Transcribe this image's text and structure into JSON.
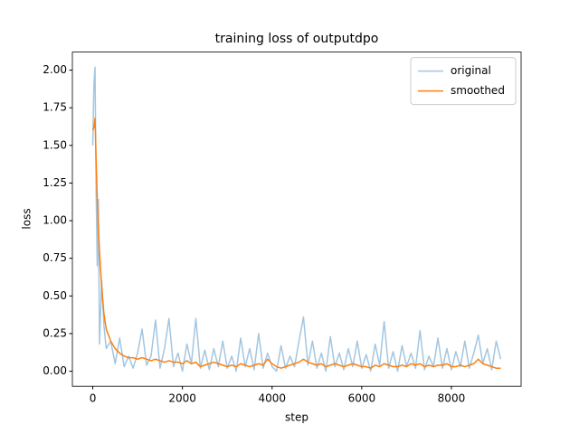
{
  "chart_data": {
    "type": "line",
    "title": "training loss of outputdpo",
    "xlabel": "step",
    "ylabel": "loss",
    "x": [
      0,
      25,
      50,
      75,
      100,
      125,
      150,
      200,
      250,
      300,
      400,
      500,
      600,
      700,
      800,
      900,
      1000,
      1100,
      1200,
      1300,
      1400,
      1500,
      1600,
      1700,
      1800,
      1900,
      2000,
      2100,
      2200,
      2300,
      2400,
      2500,
      2600,
      2700,
      2800,
      2900,
      3000,
      3100,
      3200,
      3300,
      3400,
      3500,
      3600,
      3700,
      3800,
      3900,
      4000,
      4100,
      4200,
      4300,
      4400,
      4500,
      4600,
      4700,
      4800,
      4900,
      5000,
      5100,
      5200,
      5300,
      5400,
      5500,
      5600,
      5700,
      5800,
      5900,
      6000,
      6100,
      6200,
      6300,
      6400,
      6500,
      6600,
      6700,
      6800,
      6900,
      7000,
      7100,
      7200,
      7300,
      7400,
      7500,
      7600,
      7700,
      7800,
      7900,
      8000,
      8100,
      8200,
      8300,
      8400,
      8500,
      8600,
      8700,
      8800,
      8900,
      9000,
      9100
    ],
    "series": [
      {
        "name": "original",
        "color": "#a3c6e1",
        "values": [
          1.5,
          1.9,
          2.02,
          1.2,
          0.7,
          1.14,
          0.18,
          0.6,
          0.3,
          0.15,
          0.2,
          0.05,
          0.22,
          0.03,
          0.1,
          0.02,
          0.12,
          0.28,
          0.04,
          0.1,
          0.34,
          0.02,
          0.15,
          0.35,
          0.03,
          0.12,
          0.0,
          0.18,
          0.05,
          0.35,
          0.02,
          0.14,
          0.01,
          0.15,
          0.03,
          0.2,
          0.02,
          0.1,
          0.0,
          0.22,
          0.03,
          0.15,
          0.01,
          0.25,
          0.02,
          0.12,
          0.03,
          0.0,
          0.17,
          0.02,
          0.1,
          0.03,
          0.2,
          0.36,
          0.04,
          0.2,
          0.02,
          0.12,
          0.0,
          0.23,
          0.03,
          0.12,
          0.01,
          0.15,
          0.03,
          0.2,
          0.02,
          0.11,
          0.0,
          0.18,
          0.04,
          0.33,
          0.02,
          0.13,
          0.0,
          0.17,
          0.03,
          0.12,
          0.02,
          0.27,
          0.01,
          0.1,
          0.03,
          0.22,
          0.02,
          0.15,
          0.01,
          0.13,
          0.03,
          0.2,
          0.02,
          0.12,
          0.24,
          0.05,
          0.15,
          0.01,
          0.2,
          0.08
        ]
      },
      {
        "name": "smoothed",
        "color": "#ff7f0e",
        "values": [
          1.6,
          1.62,
          1.68,
          1.4,
          1.15,
          0.95,
          0.8,
          0.55,
          0.38,
          0.28,
          0.2,
          0.15,
          0.12,
          0.1,
          0.09,
          0.09,
          0.08,
          0.09,
          0.08,
          0.07,
          0.08,
          0.07,
          0.06,
          0.07,
          0.06,
          0.06,
          0.05,
          0.07,
          0.05,
          0.06,
          0.03,
          0.04,
          0.05,
          0.06,
          0.05,
          0.04,
          0.03,
          0.04,
          0.03,
          0.05,
          0.04,
          0.03,
          0.04,
          0.05,
          0.04,
          0.08,
          0.05,
          0.03,
          0.02,
          0.03,
          0.04,
          0.05,
          0.06,
          0.08,
          0.06,
          0.05,
          0.04,
          0.05,
          0.03,
          0.04,
          0.05,
          0.04,
          0.03,
          0.04,
          0.05,
          0.04,
          0.03,
          0.03,
          0.02,
          0.04,
          0.03,
          0.05,
          0.04,
          0.03,
          0.03,
          0.04,
          0.03,
          0.05,
          0.04,
          0.05,
          0.03,
          0.04,
          0.03,
          0.04,
          0.04,
          0.05,
          0.03,
          0.03,
          0.04,
          0.03,
          0.04,
          0.05,
          0.08,
          0.05,
          0.04,
          0.03,
          0.02,
          0.02
        ]
      }
    ],
    "xlim": [
      -455,
      9555
    ],
    "xticks": [
      0,
      2000,
      4000,
      6000,
      8000
    ],
    "ylim": [
      -0.1,
      2.12
    ],
    "yticks": [
      {
        "value": 0,
        "label": "0.00"
      },
      {
        "value": 0.25,
        "label": "0.25"
      },
      {
        "value": 0.5,
        "label": "0.50"
      },
      {
        "value": 0.75,
        "label": "0.75"
      },
      {
        "value": 1.0,
        "label": "1.00"
      },
      {
        "value": 1.25,
        "label": "1.25"
      },
      {
        "value": 1.5,
        "label": "1.50"
      },
      {
        "value": 1.75,
        "label": "1.75"
      },
      {
        "value": 2.0,
        "label": "2.00"
      }
    ],
    "legend": "upper right",
    "grid": false
  }
}
